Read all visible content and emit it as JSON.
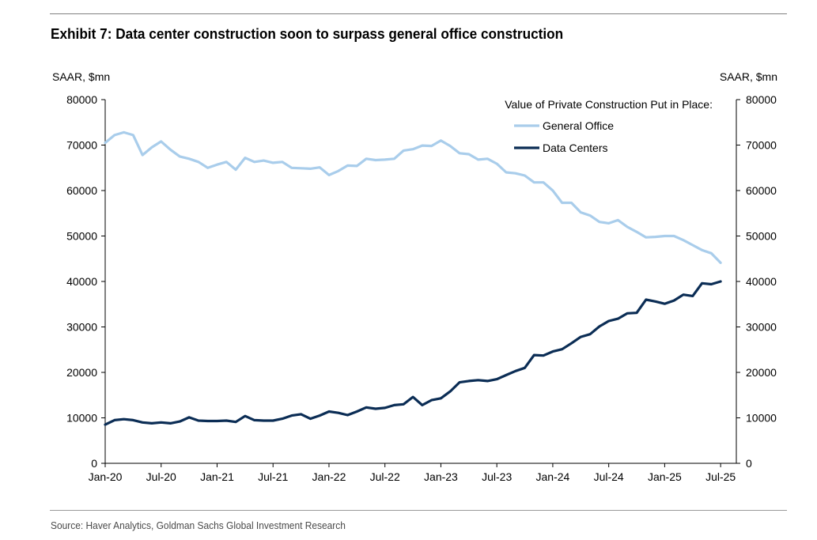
{
  "title": "Exhibit 7:  Data center construction soon to surpass general office construction",
  "source": "Source: Haver Analytics, Goldman Sachs Global Investment Research",
  "chart_data": {
    "type": "line",
    "y_left_label": "SAAR, $mn",
    "y_right_label": "SAAR, $mn",
    "ylim": [
      0,
      80000
    ],
    "yticks": [
      0,
      10000,
      20000,
      30000,
      40000,
      50000,
      60000,
      70000,
      80000
    ],
    "xticks": [
      "Jan-20",
      "Jul-20",
      "Jan-21",
      "Jul-21",
      "Jan-22",
      "Jul-22",
      "Jan-23",
      "Jul-23",
      "Jan-24",
      "Jul-24",
      "Jan-25",
      "Jul-25"
    ],
    "x_start": "Jan-20",
    "legend_title": "Value of Private Construction Put in Place:",
    "legend_position": "top-right",
    "grid": false,
    "series": [
      {
        "name": "General Office",
        "color": "#a9cdeb",
        "values": [
          70500,
          72200,
          72800,
          72200,
          67800,
          69500,
          70800,
          69000,
          67500,
          67000,
          66300,
          65000,
          65700,
          66300,
          64600,
          67200,
          66300,
          66600,
          66100,
          66300,
          65000,
          64900,
          64800,
          65100,
          63400,
          64300,
          65500,
          65400,
          67000,
          66700,
          66800,
          67000,
          68800,
          69100,
          69900,
          69800,
          71000,
          69800,
          68200,
          68000,
          66800,
          67000,
          65900,
          64000,
          63800,
          63300,
          61800,
          61800,
          60000,
          57300,
          57300,
          55200,
          54500,
          53100,
          52800,
          53500,
          52000,
          50900,
          49700,
          49800,
          50000,
          50000,
          49100,
          48000,
          46900,
          46200,
          44100
        ]
      },
      {
        "name": "Data Centers",
        "color": "#0b2d55",
        "values": [
          8500,
          9500,
          9700,
          9500,
          9000,
          8800,
          9000,
          8800,
          9200,
          10100,
          9400,
          9300,
          9300,
          9400,
          9100,
          10400,
          9500,
          9400,
          9400,
          9800,
          10500,
          10800,
          9800,
          10500,
          11400,
          11100,
          10600,
          11400,
          12300,
          12000,
          12200,
          12800,
          13000,
          14600,
          12800,
          13900,
          14300,
          15800,
          17800,
          18100,
          18300,
          18100,
          18500,
          19400,
          20300,
          21000,
          23800,
          23700,
          24600,
          25100,
          26400,
          27800,
          28400,
          30100,
          31300,
          31800,
          33000,
          33100,
          36000,
          35600,
          35100,
          35800,
          37100,
          36800,
          39600,
          39400,
          40000
        ]
      }
    ]
  }
}
